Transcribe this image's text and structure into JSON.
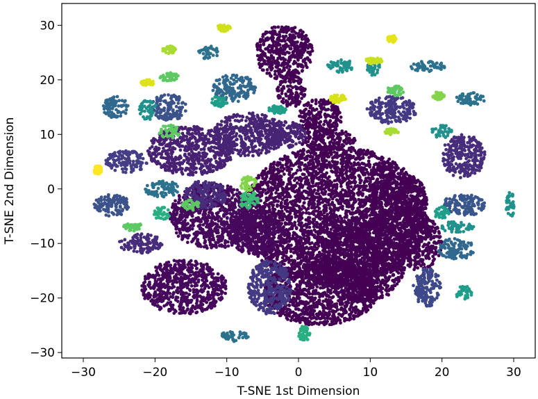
{
  "chart_data": {
    "type": "scatter",
    "xlabel": "T-SNE 1st Dimension",
    "ylabel": "T-SNE 2nd Dimension",
    "xlim": [
      -33,
      33
    ],
    "ylim": [
      -31,
      34
    ],
    "xticks": [
      -30,
      -20,
      -10,
      0,
      10,
      20,
      30
    ],
    "yticks": [
      -30,
      -20,
      -10,
      0,
      10,
      20,
      30
    ],
    "xtick_labels": [
      "−30",
      "−20",
      "−10",
      "0",
      "10",
      "20",
      "30"
    ],
    "ytick_labels": [
      "−30",
      "−20",
      "−10",
      "0",
      "10",
      "20",
      "30"
    ],
    "colormap": "viridis",
    "grid": false,
    "legend": "none",
    "clusters": [
      {
        "x": 5,
        "y": -5,
        "rx": 13,
        "ry": 13,
        "color": "#440154"
      },
      {
        "x": 3,
        "y": -19,
        "rx": 8,
        "ry": 6,
        "color": "#440154"
      },
      {
        "x": 9,
        "y": -13,
        "rx": 6,
        "ry": 8,
        "color": "#440154"
      },
      {
        "x": 3,
        "y": 13,
        "rx": 3,
        "ry": 3.5,
        "color": "#440154"
      },
      {
        "x": 4,
        "y": 9,
        "rx": 4,
        "ry": 2,
        "color": "#440154"
      },
      {
        "x": -2,
        "y": 25,
        "rx": 4,
        "ry": 5,
        "color": "#440154"
      },
      {
        "x": -1,
        "y": 18,
        "rx": 2,
        "ry": 3,
        "color": "#440154"
      },
      {
        "x": 14,
        "y": -2,
        "rx": 4,
        "ry": 5,
        "color": "#440154"
      },
      {
        "x": 17,
        "y": -10,
        "rx": 3,
        "ry": 5,
        "color": "#440154"
      },
      {
        "x": -12,
        "y": -5,
        "rx": 6,
        "ry": 6,
        "color": "#46085c"
      },
      {
        "x": -16,
        "y": -18,
        "rx": 6,
        "ry": 5,
        "color": "#46085c"
      },
      {
        "x": -6,
        "y": -8,
        "rx": 4,
        "ry": 4,
        "color": "#46085c"
      },
      {
        "x": -15,
        "y": 7,
        "rx": 6,
        "ry": 4.5,
        "color": "#482173"
      },
      {
        "x": -7,
        "y": 10,
        "rx": 5,
        "ry": 4,
        "color": "#482475"
      },
      {
        "x": -2,
        "y": 10,
        "rx": 3,
        "ry": 2.5,
        "color": "#482475"
      },
      {
        "x": 23,
        "y": 6,
        "rx": 3,
        "ry": 4,
        "color": "#472d7b"
      },
      {
        "x": -13,
        "y": -1,
        "rx": 3,
        "ry": 2.5,
        "color": "#472d7b"
      },
      {
        "x": -22,
        "y": -10,
        "rx": 3,
        "ry": 1.8,
        "color": "#472d7b"
      },
      {
        "x": 13,
        "y": 14.5,
        "rx": 3.5,
        "ry": 2.5,
        "color": "#443983"
      },
      {
        "x": -4,
        "y": -18,
        "rx": 3,
        "ry": 5,
        "color": "#443983"
      },
      {
        "x": -24,
        "y": 5,
        "rx": 3,
        "ry": 2,
        "color": "#433e85"
      },
      {
        "x": 18,
        "y": -18,
        "rx": 2,
        "ry": 3.5,
        "color": "#3e4989"
      },
      {
        "x": -26,
        "y": -3,
        "rx": 2.5,
        "ry": 2,
        "color": "#3b528b"
      },
      {
        "x": -18,
        "y": 15,
        "rx": 2.5,
        "ry": 2.5,
        "color": "#3b528b"
      },
      {
        "x": 23,
        "y": -3,
        "rx": 3,
        "ry": 2,
        "color": "#39568c"
      },
      {
        "x": -9,
        "y": 18.5,
        "rx": 3,
        "ry": 2.5,
        "color": "#31688e"
      },
      {
        "x": -25.5,
        "y": 15,
        "rx": 1.8,
        "ry": 2,
        "color": "#31688e"
      },
      {
        "x": 22,
        "y": -11,
        "rx": 2.5,
        "ry": 2,
        "color": "#31688e"
      },
      {
        "x": -19,
        "y": 0,
        "rx": 2.5,
        "ry": 1.5,
        "color": "#2c728e"
      },
      {
        "x": -12.5,
        "y": 25,
        "rx": 1.5,
        "ry": 1.2,
        "color": "#2c728e"
      },
      {
        "x": 18,
        "y": 22.5,
        "rx": 2.5,
        "ry": 1,
        "color": "#2c728e"
      },
      {
        "x": 24,
        "y": 16.5,
        "rx": 2,
        "ry": 1.2,
        "color": "#2c728e"
      },
      {
        "x": -9,
        "y": -27,
        "rx": 2,
        "ry": 1,
        "color": "#2c728e"
      },
      {
        "x": 29.5,
        "y": -3,
        "rx": 0.6,
        "ry": 2.5,
        "color": "#21918c"
      },
      {
        "x": 20,
        "y": 10.5,
        "rx": 1.5,
        "ry": 1.2,
        "color": "#21918c"
      },
      {
        "x": 22,
        "y": -7,
        "rx": 2.5,
        "ry": 1,
        "color": "#21918c"
      },
      {
        "x": 10.5,
        "y": 22,
        "rx": 1,
        "ry": 1.2,
        "color": "#21918c"
      },
      {
        "x": 6,
        "y": 22.5,
        "rx": 2,
        "ry": 1.2,
        "color": "#21918c"
      },
      {
        "x": -21,
        "y": 14.5,
        "rx": 1.2,
        "ry": 1.8,
        "color": "#21918c"
      },
      {
        "x": 20,
        "y": -4.5,
        "rx": 1,
        "ry": 1.2,
        "color": "#1f9e89"
      },
      {
        "x": 23,
        "y": -19,
        "rx": 1.2,
        "ry": 1.2,
        "color": "#1f9e89"
      },
      {
        "x": -3,
        "y": 14.5,
        "rx": 1.3,
        "ry": 0.8,
        "color": "#1f9e89"
      },
      {
        "x": -11,
        "y": 16,
        "rx": 1.2,
        "ry": 1,
        "color": "#1f9e89"
      },
      {
        "x": -19,
        "y": -4.5,
        "rx": 1.2,
        "ry": 1.2,
        "color": "#28ae80"
      },
      {
        "x": 0.8,
        "y": -26.5,
        "rx": 0.8,
        "ry": 1.5,
        "color": "#28ae80"
      },
      {
        "x": -7,
        "y": -2,
        "rx": 1.5,
        "ry": 1.5,
        "color": "#3bbb75"
      },
      {
        "x": -15,
        "y": -3,
        "rx": 1.2,
        "ry": 1,
        "color": "#5ec962"
      },
      {
        "x": 13.5,
        "y": 18,
        "rx": 1.2,
        "ry": 0.9,
        "color": "#5ec962"
      },
      {
        "x": -18,
        "y": 20.5,
        "rx": 1.3,
        "ry": 0.8,
        "color": "#5ec962"
      },
      {
        "x": -18,
        "y": 10.5,
        "rx": 1.5,
        "ry": 1.2,
        "color": "#5ec962"
      },
      {
        "x": -23,
        "y": -7,
        "rx": 1.5,
        "ry": 0.7,
        "color": "#5ec962"
      },
      {
        "x": -7,
        "y": 1,
        "rx": 1.2,
        "ry": 1.3,
        "color": "#84d44b"
      },
      {
        "x": 19.5,
        "y": 17,
        "rx": 0.8,
        "ry": 0.8,
        "color": "#84d44b"
      },
      {
        "x": 13,
        "y": 10.5,
        "rx": 1,
        "ry": 0.6,
        "color": "#a8db34"
      },
      {
        "x": -18,
        "y": 25.5,
        "rx": 1,
        "ry": 0.7,
        "color": "#a8db34"
      },
      {
        "x": 10.5,
        "y": 23.5,
        "rx": 1.2,
        "ry": 0.6,
        "color": "#c8e020"
      },
      {
        "x": -10.5,
        "y": 29.5,
        "rx": 1,
        "ry": 0.6,
        "color": "#d0e11c"
      },
      {
        "x": 5.5,
        "y": 16.5,
        "rx": 1.2,
        "ry": 0.8,
        "color": "#d8e219"
      },
      {
        "x": -21,
        "y": 19.5,
        "rx": 1,
        "ry": 0.7,
        "color": "#dde318"
      },
      {
        "x": 13,
        "y": 27.5,
        "rx": 0.6,
        "ry": 0.7,
        "color": "#e5e419"
      },
      {
        "x": -28,
        "y": 3.5,
        "rx": 0.6,
        "ry": 0.8,
        "color": "#fde725"
      }
    ]
  }
}
